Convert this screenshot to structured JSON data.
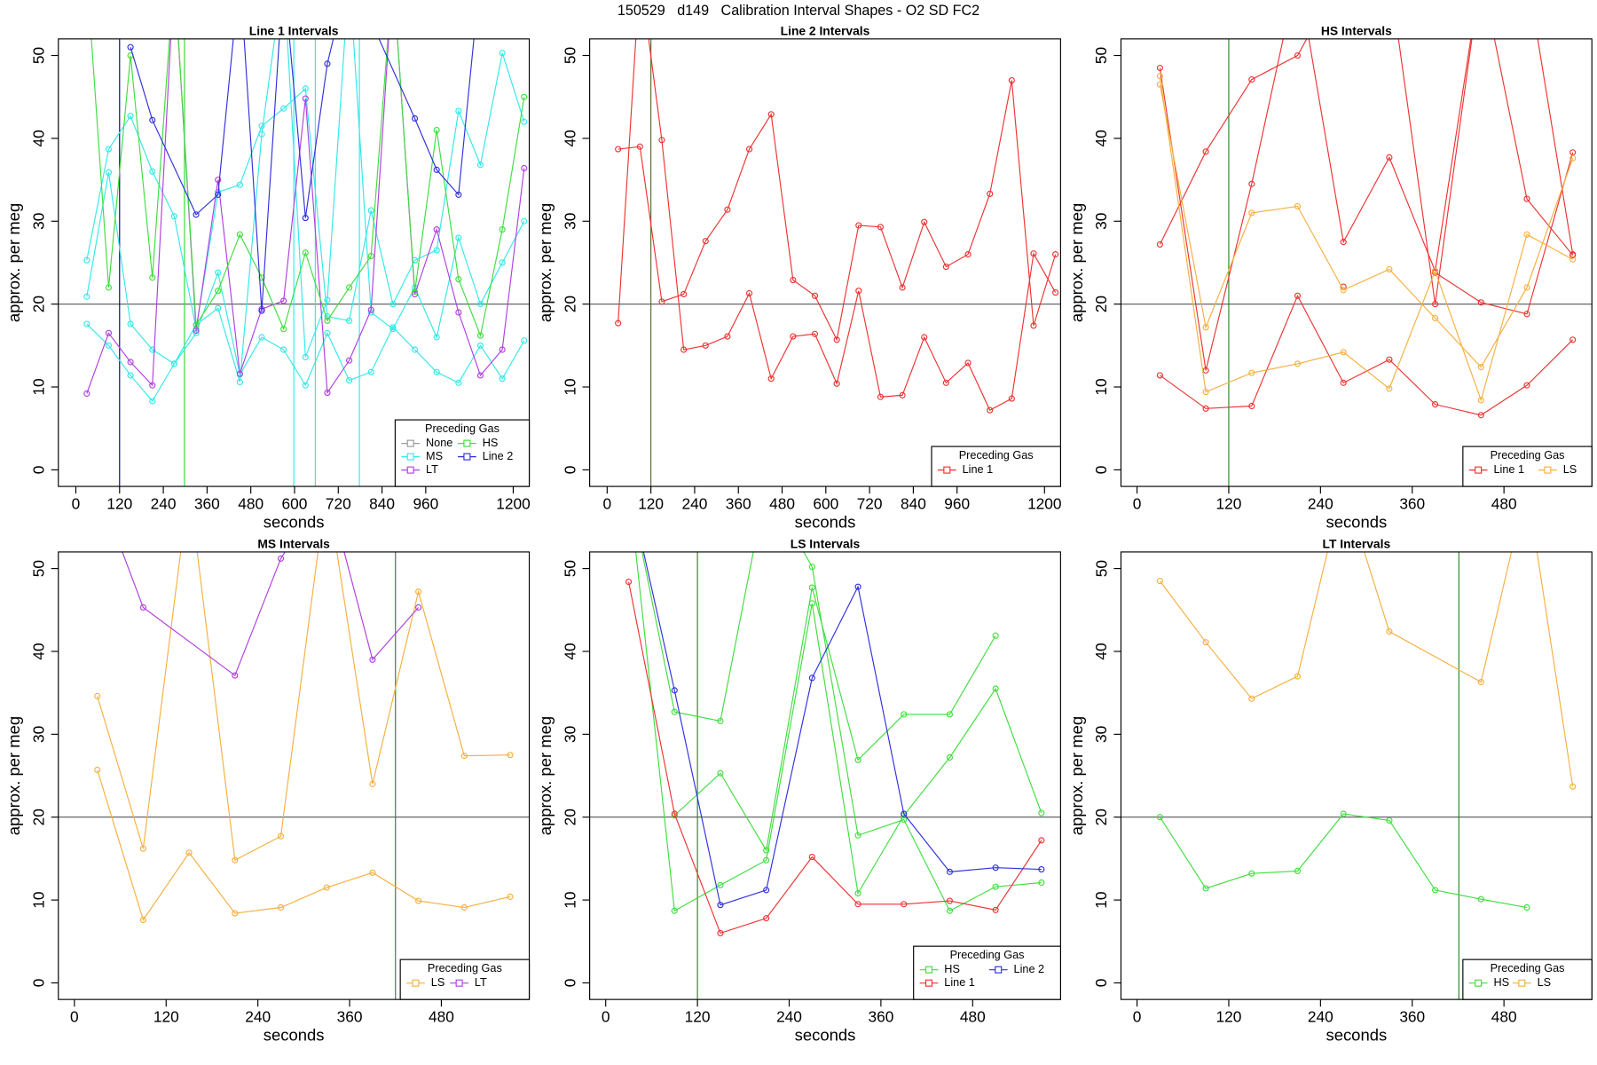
{
  "title": "150529   d149   Calibration Interval Shapes - O2 SD FC2",
  "chart_data": [
    {
      "type": "line",
      "title": "Line 1 Intervals",
      "xlabel": "seconds",
      "ylabel": "approx. per meg",
      "xlim": [
        -48,
        1244
      ],
      "xticks": [
        0,
        120,
        240,
        360,
        480,
        600,
        720,
        840,
        960,
        1200
      ],
      "ylim": [
        -2,
        52
      ],
      "yticks": [
        0,
        10,
        20,
        30,
        40,
        50
      ],
      "hline": 20,
      "vlines": [
        {
          "x": 120,
          "color": "#00008b"
        },
        {
          "x": 298,
          "color": "#33dd33"
        },
        {
          "x": 598,
          "color": "#33e8e8"
        },
        {
          "x": 657,
          "color": "#33e8e8"
        },
        {
          "x": 778,
          "color": "#33e8e8"
        }
      ],
      "legend": "bottomright",
      "legend_title": "Preceding Gas",
      "series": [
        {
          "name": "None",
          "color": "#999999",
          "x": [],
          "lines": []
        },
        {
          "name": "MS",
          "color": "#33e8e8",
          "x": [
            30,
            90,
            150,
            210,
            270,
            330,
            390,
            450,
            510,
            570,
            630,
            690,
            750,
            810,
            870,
            930,
            990,
            1050,
            1110,
            1170,
            1230
          ],
          "lines": [
            [
              25.3,
              38.7,
              42.7,
              36,
              30.6,
              17,
              33.5,
              34.4,
              41.5,
              43.6,
              46,
              18.5,
              18,
              31.3,
              20,
              25.3,
              26.5,
              43.3,
              36.8,
              50.3,
              42
            ],
            [
              20.9,
              35.9,
              17.6,
              14.5,
              12.8,
              17.5,
              19.5,
              10.6,
              40.5,
              60,
              13.6,
              20.5,
              60,
              19,
              17,
              22,
              16,
              28,
              20,
              25,
              30
            ],
            [
              17.6,
              15,
              11.4,
              8.3,
              12.8,
              16.5,
              23.8,
              11.5,
              16,
              14.5,
              10.2,
              16.5,
              10.8,
              11.8,
              17.2,
              14.5,
              11.8,
              10.5,
              15,
              11,
              15.6
            ]
          ]
        },
        {
          "name": "LT",
          "color": "#b040e0",
          "x": [
            30,
            90,
            150,
            210,
            270,
            330,
            390,
            450,
            510,
            570,
            630,
            690,
            750,
            810,
            870,
            930,
            990,
            1050,
            1110,
            1170,
            1230
          ],
          "lines": [
            [
              9.2,
              16.5,
              13,
              10.2,
              60,
              16.8,
              35,
              11.6,
              19.4,
              20.4,
              44.8,
              9.3,
              13.2,
              19.3,
              60,
              21.2,
              29,
              19,
              11.4,
              14.5,
              36.4
            ]
          ]
        },
        {
          "name": "HS",
          "color": "#40dd40",
          "x": [
            30,
            90,
            150,
            210,
            270,
            330,
            390,
            450,
            510,
            570,
            630,
            690,
            750,
            810,
            870,
            930,
            990,
            1050,
            1110,
            1170,
            1230
          ],
          "lines": [
            [
              60,
              22,
              50,
              23.2,
              60,
              17.5,
              21.6,
              28.4,
              23.2,
              17,
              26.2,
              18,
              22,
              25.8,
              60,
              21.5,
              41,
              23,
              16.2,
              29,
              45
            ]
          ]
        },
        {
          "name": "Line 2",
          "color": "#3030dd",
          "x": [
            150,
            210,
            330,
            390,
            450,
            510,
            570,
            630,
            690,
            750,
            930,
            990,
            1050,
            1110
          ],
          "lines": [
            [
              51,
              42.2,
              30.8,
              33.2,
              60,
              19.2,
              60,
              30.4,
              49,
              60,
              42.4,
              36.2,
              33.2,
              60
            ]
          ]
        }
      ]
    },
    {
      "type": "line",
      "title": "Line 2 Intervals",
      "xlabel": "seconds",
      "ylabel": "approx. per meg",
      "xlim": [
        -48,
        1244
      ],
      "xticks": [
        0,
        120,
        240,
        360,
        480,
        600,
        720,
        840,
        960,
        1200
      ],
      "ylim": [
        -2,
        52
      ],
      "yticks": [
        0,
        10,
        20,
        30,
        40,
        50
      ],
      "hline": 20,
      "vlines": [
        {
          "x": 120,
          "color": "#556b2f"
        }
      ],
      "legend": "bottomright",
      "legend_title": "Preceding Gas",
      "series": [
        {
          "name": "Line 1",
          "color": "#ee3333",
          "x": [
            30,
            90,
            150,
            210,
            270,
            330,
            390,
            450,
            510,
            570,
            630,
            690,
            750,
            810,
            870,
            930,
            990,
            1050,
            1110,
            1170,
            1230
          ],
          "lines": [
            [
              38.7,
              39,
              20.3,
              21.2,
              27.6,
              31.4,
              38.7,
              42.9,
              22.9,
              21,
              15.7,
              29.5,
              29.3,
              22,
              29.9,
              24.5,
              26,
              33.3,
              47,
              17.4,
              26
            ],
            [
              17.7,
              60,
              39.8,
              14.5,
              15,
              16.1,
              21.3,
              11,
              16.1,
              16.4,
              10.4,
              21.6,
              8.8,
              9,
              16,
              10.5,
              12.9,
              7.2,
              8.6,
              26.1,
              21.4
            ]
          ]
        }
      ]
    },
    {
      "type": "line",
      "title": "HS Intervals",
      "xlabel": "seconds",
      "ylabel": "approx. per meg",
      "xlim": [
        -21,
        595
      ],
      "xticks": [
        0,
        120,
        240,
        360,
        480
      ],
      "ylim": [
        -2,
        52
      ],
      "yticks": [
        0,
        10,
        20,
        30,
        40,
        50
      ],
      "hline": 20,
      "vlines": [
        {
          "x": 120,
          "color": "#228b22"
        }
      ],
      "legend": "bottomright",
      "legend_title": "Preceding Gas",
      "series": [
        {
          "name": "Line 1",
          "color": "#ee3333",
          "x": [
            30,
            90,
            150,
            210,
            270,
            330,
            390,
            450,
            510,
            570
          ],
          "lines": [
            [
              27.2,
              38.4,
              47.1,
              50,
              60,
              60,
              20,
              60,
              32.7,
              25.9
            ],
            [
              48.5,
              12,
              34.5,
              60,
              27.5,
              37.7,
              24,
              60,
              60,
              26
            ],
            [
              11.4,
              7.4,
              7.7,
              21,
              10.5,
              13.3,
              7.9,
              6.6,
              10.2,
              15.7
            ],
            [
              null,
              null,
              null,
              null,
              22.1,
              null,
              23.8,
              20.2,
              18.8,
              38.3
            ]
          ]
        },
        {
          "name": "LS",
          "color": "#f5b040",
          "x": [
            30,
            90,
            150,
            210,
            270,
            330,
            390,
            450,
            510,
            570
          ],
          "lines": [
            [
              47.5,
              9.4,
              11.7,
              12.8,
              14.2,
              9.8,
              24,
              8.4,
              28.4,
              25.4
            ],
            [
              46.5,
              17.2,
              31,
              31.8,
              21.7,
              24.2,
              18.3,
              12.4,
              22,
              37.6
            ]
          ]
        }
      ]
    },
    {
      "type": "line",
      "title": "MS Intervals",
      "xlabel": "seconds",
      "ylabel": "approx. per meg",
      "xlim": [
        -21,
        595
      ],
      "xticks": [
        0,
        120,
        240,
        360,
        480
      ],
      "ylim": [
        -2,
        52
      ],
      "yticks": [
        0,
        10,
        20,
        30,
        40,
        50
      ],
      "hline": 20,
      "vlines": [
        {
          "x": 420,
          "color": "#228b22"
        }
      ],
      "legend": "bottomright",
      "legend_title": "Preceding Gas",
      "series": [
        {
          "name": "LS",
          "color": "#f5b040",
          "x": [
            30,
            90,
            150,
            210,
            270,
            330,
            390,
            450,
            510,
            570
          ],
          "lines": [
            [
              34.6,
              16.2,
              60,
              14.8,
              17.7,
              60,
              24,
              47.2,
              27.4,
              27.5
            ],
            [
              25.7,
              7.6,
              15.7,
              8.4,
              9.1,
              11.5,
              13.3,
              9.9,
              9.1,
              10.4
            ]
          ]
        },
        {
          "name": "LT",
          "color": "#b040e0",
          "x": [
            30,
            90,
            210,
            270,
            330,
            390,
            450
          ],
          "lines": [
            [
              60,
              45.3,
              37.1,
              51.2,
              60,
              39,
              45.3
            ]
          ]
        }
      ]
    },
    {
      "type": "line",
      "title": "LS Intervals",
      "xlabel": "seconds",
      "ylabel": "approx. per meg",
      "xlim": [
        -21,
        595
      ],
      "xticks": [
        0,
        120,
        240,
        360,
        480
      ],
      "ylim": [
        -2,
        52
      ],
      "yticks": [
        0,
        10,
        20,
        30,
        40,
        50
      ],
      "hline": 20,
      "vlines": [
        {
          "x": 120,
          "color": "#228b22"
        }
      ],
      "legend": "bottomright",
      "legend_title": "Preceding Gas",
      "series": [
        {
          "name": "HS",
          "color": "#40dd40",
          "x": [
            30,
            90,
            150,
            210,
            270,
            330,
            390,
            450,
            510,
            570
          ],
          "lines": [
            [
              60,
              8.7,
              11.8,
              14.8,
              45.8,
              10.8,
              20.2,
              27.2,
              35.5,
              20.5
            ],
            [
              60,
              32.7,
              31.6,
              60,
              50.2,
              17.8,
              19.7,
              8.7,
              11.6,
              12.1
            ],
            [
              null,
              20.2,
              25.3,
              16,
              47.7,
              26.9,
              32.4,
              32.4,
              41.9,
              null
            ]
          ]
        },
        {
          "name": "Line 1",
          "color": "#ee3333",
          "x": [
            30,
            90,
            150,
            210,
            270,
            330,
            390,
            450,
            510,
            570
          ],
          "lines": [
            [
              48.4,
              20.4,
              6,
              7.8,
              15.2,
              9.5,
              9.5,
              9.9,
              8.8,
              17.2
            ]
          ]
        },
        {
          "name": "Line 2",
          "color": "#3030dd",
          "x": [
            30,
            90,
            150,
            210,
            270,
            330,
            390,
            450,
            510,
            570
          ],
          "lines": [
            [
              60,
              35.3,
              9.4,
              11.2,
              36.8,
              47.8,
              20.4,
              13.4,
              13.9,
              13.7
            ]
          ]
        }
      ]
    },
    {
      "type": "line",
      "title": "LT Intervals",
      "xlabel": "seconds",
      "ylabel": "approx. per meg",
      "xlim": [
        -21,
        595
      ],
      "xticks": [
        0,
        120,
        240,
        360,
        480
      ],
      "ylim": [
        -2,
        52
      ],
      "yticks": [
        0,
        10,
        20,
        30,
        40,
        50
      ],
      "hline": 20,
      "vlines": [
        {
          "x": 421,
          "color": "#228b22"
        }
      ],
      "legend": "bottomright",
      "legend_title": "Preceding Gas",
      "series": [
        {
          "name": "HS",
          "color": "#40dd40",
          "x": [
            30,
            90,
            150,
            210,
            270,
            330,
            390,
            450,
            510
          ],
          "lines": [
            [
              20,
              11.4,
              13.2,
              13.5,
              20.4,
              19.6,
              11.2,
              10.1,
              9.1
            ]
          ]
        },
        {
          "name": "LS",
          "color": "#f5b040",
          "x": [
            30,
            90,
            150,
            210,
            270,
            330,
            450,
            510,
            570
          ],
          "lines": [
            [
              48.5,
              41.1,
              34.3,
              37,
              60,
              42.4,
              36.3,
              60,
              23.7
            ]
          ]
        }
      ]
    }
  ]
}
